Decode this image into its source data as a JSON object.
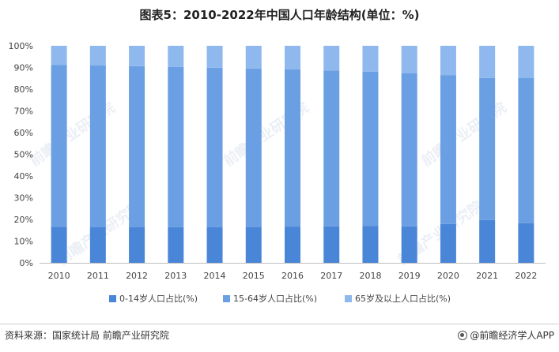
{
  "title": "图表5：2010-2022年中国人口年龄结构(单位：%)",
  "chart_data": {
    "type": "bar",
    "stacked": true,
    "categories": [
      "2010",
      "2011",
      "2012",
      "2013",
      "2014",
      "2015",
      "2016",
      "2017",
      "2018",
      "2019",
      "2020",
      "2021",
      "2022"
    ],
    "series": [
      {
        "name": "0-14岁人口占比(%)",
        "color": "#4a86d8",
        "values": [
          16.6,
          16.5,
          16.5,
          16.4,
          16.5,
          16.5,
          16.7,
          16.8,
          16.9,
          16.8,
          17.9,
          19.7,
          18.3
        ]
      },
      {
        "name": "15-64岁人口占比(%)",
        "color": "#6a9fe3",
        "values": [
          74.5,
          74.4,
          74.1,
          73.9,
          73.4,
          73.0,
          72.5,
          71.8,
          71.2,
          70.6,
          68.6,
          65.5,
          66.8
        ]
      },
      {
        "name": "65岁及以上人口占比(%)",
        "color": "#8eb8ee",
        "values": [
          8.9,
          9.1,
          9.4,
          9.7,
          10.1,
          10.5,
          10.8,
          11.4,
          11.9,
          12.6,
          13.5,
          14.8,
          14.9
        ]
      }
    ],
    "ylim": [
      0,
      100
    ],
    "yticks": [
      "0%",
      "10%",
      "20%",
      "30%",
      "40%",
      "50%",
      "60%",
      "70%",
      "80%",
      "90%",
      "100%"
    ],
    "legend_position": "bottom",
    "grid": false
  },
  "watermark": "前瞻产业研究院",
  "footer": {
    "source": "资料来源：国家统计局 前瞻产业研究院",
    "brand": "@前瞻经济学人APP",
    "brand_icon": "circle-logo-icon"
  }
}
